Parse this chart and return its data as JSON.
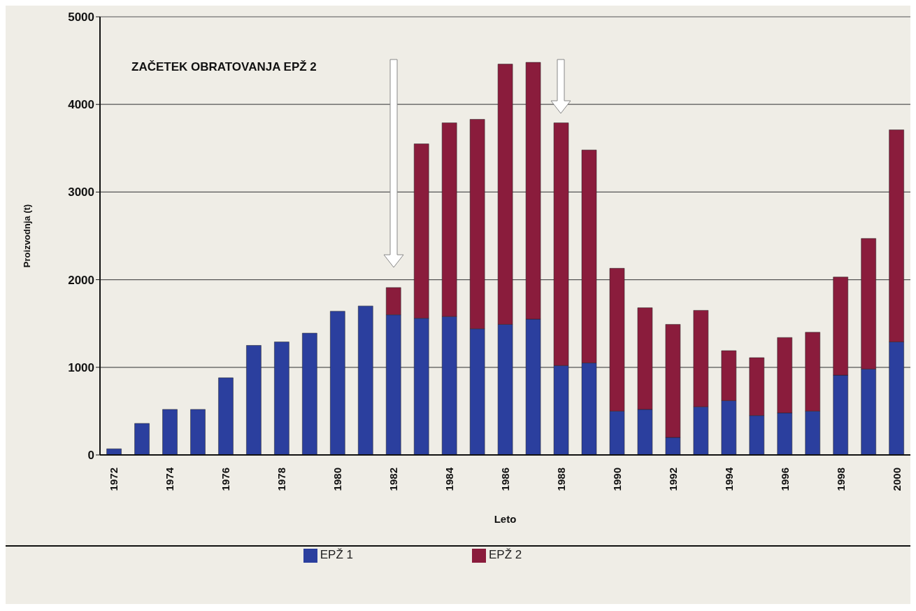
{
  "chart_data": {
    "type": "bar",
    "stacked": true,
    "xlabel": "Leto",
    "ylabel": "Proizvodnja  (t)",
    "categories": [
      "1972",
      null,
      "1974",
      null,
      "1976",
      null,
      "1978",
      null,
      "1980",
      null,
      "1982",
      null,
      "1984",
      null,
      "1986",
      null,
      "1988",
      null,
      "1990",
      null,
      "1992",
      null,
      "1994",
      null,
      "1996",
      null,
      "1998",
      null,
      "2000"
    ],
    "series": [
      {
        "name": "EPŽ 1",
        "color": "#2b3f9e",
        "values": [
          70,
          360,
          520,
          520,
          880,
          1250,
          1290,
          1390,
          1640,
          1700,
          1600,
          1560,
          1580,
          1440,
          1490,
          1550,
          1020,
          1050,
          500,
          520,
          200,
          550,
          620,
          450,
          480,
          500,
          910,
          980,
          1290
        ]
      },
      {
        "name": "EPŽ 2",
        "color": "#8a1c3c",
        "values": [
          null,
          null,
          null,
          null,
          null,
          null,
          null,
          null,
          null,
          null,
          310,
          1990,
          2210,
          2390,
          2970,
          2930,
          2770,
          2430,
          1630,
          1160,
          1290,
          1100,
          570,
          660,
          860,
          900,
          1120,
          1490,
          2420
        ]
      }
    ],
    "ylim": [
      0,
      5000
    ],
    "yticks": [
      0,
      1000,
      2000,
      3000,
      4000,
      5000
    ],
    "grid": "y",
    "legend": "bottom",
    "annotations": [
      "ZAČETEK OBRATOVANJA EPŽ 2"
    ]
  }
}
